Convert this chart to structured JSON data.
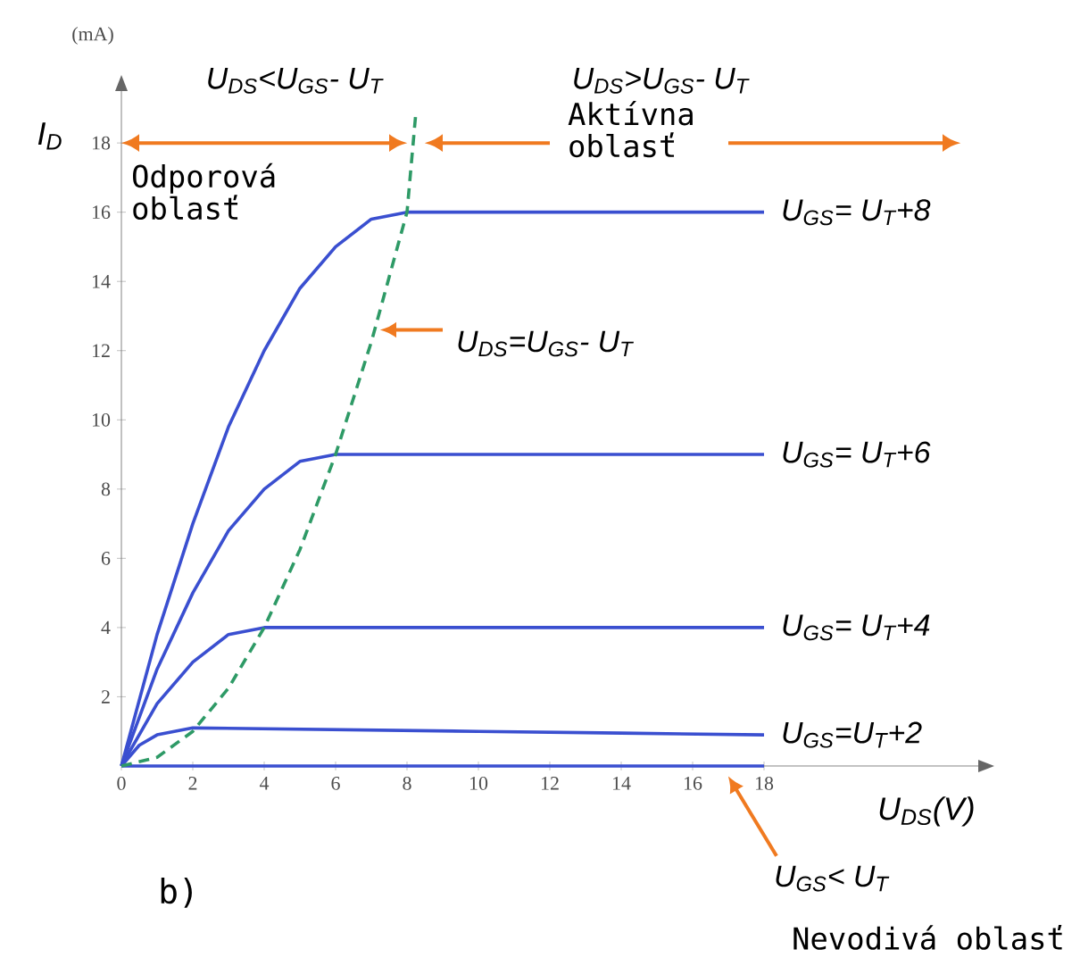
{
  "chart_data": {
    "type": "line",
    "xlabel": "U$_{DS}$(V)",
    "ylabel": "I$_{D}$",
    "xlim": [
      0,
      24
    ],
    "ylim": [
      0,
      19.5
    ],
    "xticks": [
      0,
      2,
      4,
      6,
      8,
      10,
      12,
      14,
      16,
      18
    ],
    "yticks": [
      2,
      4,
      6,
      8,
      10,
      12,
      14,
      16,
      18
    ],
    "grid": false,
    "legend": false,
    "marker": "none",
    "series": [
      {
        "name": "U$_{GS}$= U$_{T}$+8",
        "color": "#3a4fd0",
        "x": [
          0,
          1,
          2,
          3,
          4,
          5,
          6,
          7,
          8,
          10,
          12,
          14,
          16,
          18
        ],
        "values": [
          0,
          3.8,
          7,
          9.8,
          12,
          13.8,
          15,
          15.8,
          16,
          16,
          16,
          16,
          16,
          16
        ]
      },
      {
        "name": "U$_{GS}$= U$_{T}$+6",
        "color": "#3a4fd0",
        "x": [
          0,
          1,
          2,
          3,
          4,
          5,
          6,
          8,
          10,
          12,
          14,
          16,
          18
        ],
        "values": [
          0,
          2.8,
          5,
          6.8,
          8,
          8.8,
          9,
          9,
          9,
          9,
          9,
          9,
          9
        ]
      },
      {
        "name": "U$_{GS}$= U$_{T}$+4",
        "color": "#3a4fd0",
        "x": [
          0,
          1,
          2,
          3,
          4,
          6,
          8,
          10,
          12,
          14,
          16,
          18
        ],
        "values": [
          0,
          1.8,
          3,
          3.8,
          4,
          4,
          4,
          4,
          4,
          4,
          4,
          4
        ]
      },
      {
        "name": "U$_{GS}$=U$_{T}$+2",
        "color": "#3a4fd0",
        "x": [
          0,
          0.5,
          1,
          2,
          6,
          10,
          14,
          18
        ],
        "values": [
          0,
          0.6,
          0.9,
          1.1,
          1.05,
          1.0,
          0.95,
          0.9
        ]
      },
      {
        "color": "#3a4fd0",
        "x": [
          0,
          18
        ],
        "values": [
          0,
          0
        ]
      },
      {
        "color": "#2e9a66",
        "line_style": "dashed",
        "x": [
          0,
          1,
          2,
          3,
          4,
          5,
          6,
          7,
          8,
          8.25
        ],
        "values": [
          0,
          0.25,
          1,
          2.25,
          4,
          6.25,
          9,
          12.25,
          16,
          18.9
        ]
      }
    ],
    "annotations": [
      "(mA)",
      "U$_{DS}$<U$_{GS}$- U$_{T}$",
      "U$_{DS}$>U$_{GS}$- U$_{T}$",
      "Odporová oblasť",
      "Aktívna oblasť",
      "b)",
      "Nevodivá oblasť",
      {
        "text": "U$_{DS}$=U$_{GS}$- U$_{T}$",
        "x": 7.1,
        "y": 12.6
      },
      "U$_{GS}$< U$_{T}$"
    ]
  }
}
